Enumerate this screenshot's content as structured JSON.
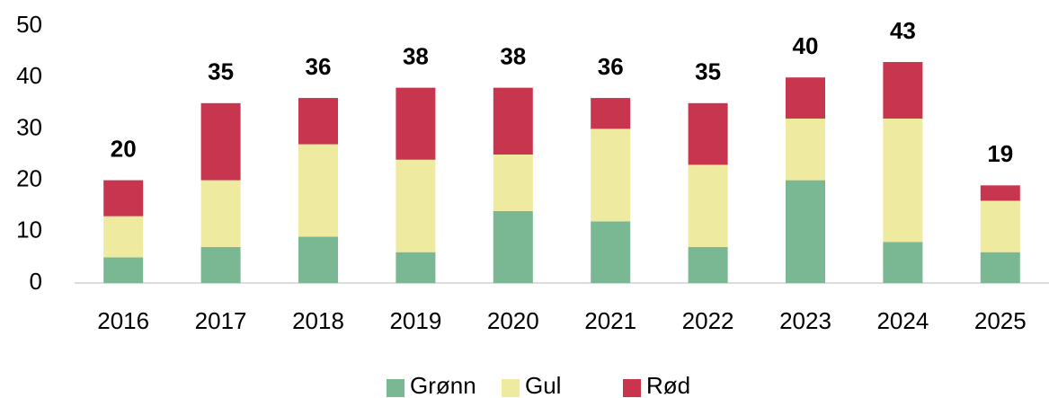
{
  "chart_data": {
    "type": "stacked_bar",
    "categories": [
      "2016",
      "2017",
      "2018",
      "2019",
      "2020",
      "2021",
      "2022",
      "2023",
      "2024",
      "2025"
    ],
    "series": [
      {
        "name": "Grønn",
        "color": "#7ab893",
        "values": [
          5,
          7,
          9,
          6,
          14,
          12,
          7,
          20,
          8,
          6
        ]
      },
      {
        "name": "Gul",
        "color": "#eeeba0",
        "values": [
          8,
          13,
          18,
          18,
          11,
          18,
          16,
          12,
          24,
          10
        ]
      },
      {
        "name": "Rød",
        "color": "#c8354f",
        "values": [
          7,
          15,
          9,
          14,
          13,
          6,
          12,
          8,
          11,
          3
        ]
      }
    ],
    "totals": [
      20,
      35,
      36,
      38,
      38,
      36,
      35,
      40,
      43,
      19
    ],
    "ylim": [
      0,
      50
    ],
    "yticks": [
      0,
      10,
      20,
      30,
      40,
      50
    ],
    "grid": false,
    "legend": "bottom"
  }
}
